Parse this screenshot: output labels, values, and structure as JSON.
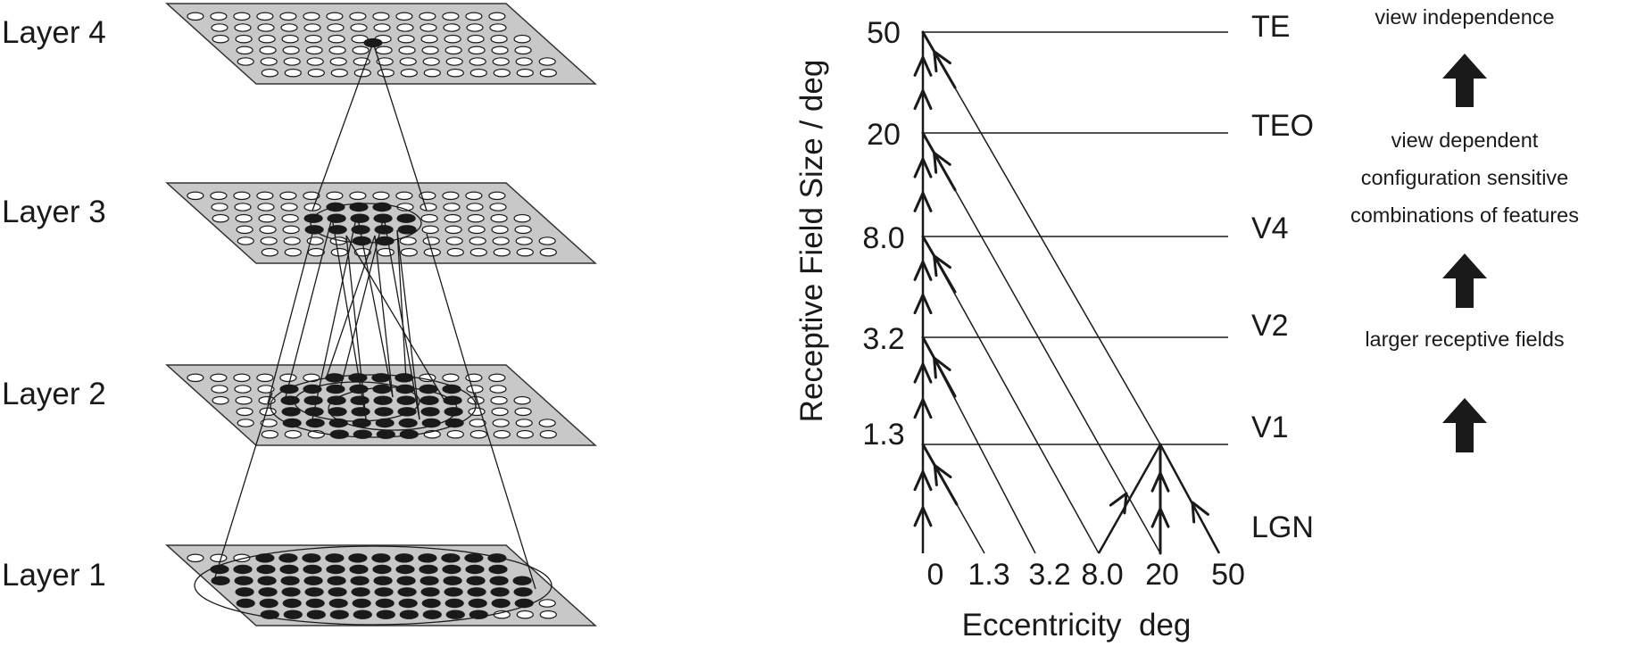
{
  "layers": {
    "layer4": "Layer 4",
    "layer3": "Layer 3",
    "layer2": "Layer 2",
    "layer1": "Layer 1"
  },
  "chart": {
    "y_axis_label": "Receptive Field Size / deg",
    "x_axis_label": "Eccentricity  deg",
    "y_ticks": [
      "50",
      "20",
      "8.0",
      "3.2",
      "1.3"
    ],
    "x_ticks": [
      "0",
      "1.3",
      "3.2",
      "8.0",
      "20",
      "50"
    ],
    "areas": [
      "TE",
      "TEO",
      "V4",
      "V2",
      "V1",
      "LGN"
    ]
  },
  "annotations": {
    "top": "view independence",
    "middle_line1": "view dependent",
    "middle_line2": "configuration sensitive",
    "middle_line3": "combinations of features",
    "bottom": "larger receptive fields"
  },
  "colors": {
    "plane": "#c8c8c8",
    "ink": "#1a1a1a"
  }
}
